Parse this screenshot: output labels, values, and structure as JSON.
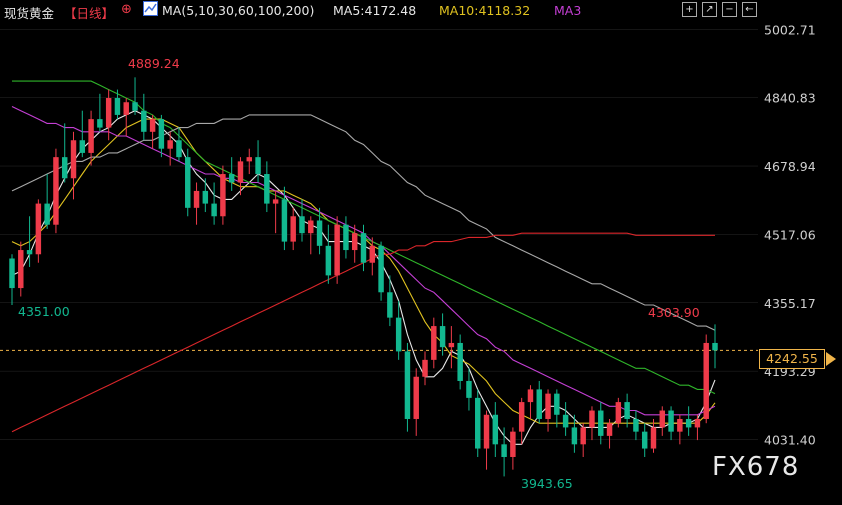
{
  "header": {
    "symbol": "现货黄金",
    "period": "【日线】",
    "ma_label": "MA(5,10,30,60,100,200)",
    "ma5_text": "MA5:4172.48",
    "ma10_text": "MA10:4118.32",
    "ma3_text": "MA3",
    "toolbar": [
      "+",
      "↗",
      "−",
      "←"
    ]
  },
  "colors": {
    "up": "#ef3b4a",
    "down": "#12b890",
    "ma5": "#e8e8e8",
    "ma10": "#e0c220",
    "ma30": "#c43fd4",
    "ma60": "#2fb52a",
    "ma100": "#a8a8a8",
    "ma200": "#d9262a",
    "current": "#f0b54a",
    "grid": "#2a2a2a"
  },
  "price_axis": {
    "ticks": [
      "5002.71",
      "4840.83",
      "4678.94",
      "4517.06",
      "4355.17",
      "4193.29",
      "4031.40"
    ],
    "current_price": "4242.55"
  },
  "annotations": {
    "high": "4889.24",
    "low_left": "4351.00",
    "low": "3943.65",
    "recent_high": "4303.90"
  },
  "watermark": "FX678",
  "chart_data": {
    "type": "candlestick",
    "title": "现货黄金 日线",
    "ylim": [
      3900,
      5020
    ],
    "y_ticks": [
      5002.71,
      4840.83,
      4678.94,
      4517.06,
      4355.17,
      4193.29,
      4031.4
    ],
    "current_price": 4242.55,
    "candles": [
      [
        4460,
        4470,
        4350,
        4390
      ],
      [
        4390,
        4500,
        4370,
        4480
      ],
      [
        4480,
        4560,
        4440,
        4470
      ],
      [
        4470,
        4600,
        4450,
        4590
      ],
      [
        4590,
        4660,
        4530,
        4540
      ],
      [
        4540,
        4720,
        4520,
        4700
      ],
      [
        4700,
        4780,
        4640,
        4650
      ],
      [
        4650,
        4760,
        4600,
        4740
      ],
      [
        4740,
        4810,
        4700,
        4710
      ],
      [
        4710,
        4810,
        4680,
        4790
      ],
      [
        4790,
        4850,
        4760,
        4770
      ],
      [
        4770,
        4860,
        4740,
        4840
      ],
      [
        4840,
        4860,
        4790,
        4800
      ],
      [
        4800,
        4840,
        4750,
        4830
      ],
      [
        4830,
        4889,
        4800,
        4810
      ],
      [
        4810,
        4850,
        4740,
        4760
      ],
      [
        4760,
        4800,
        4720,
        4790
      ],
      [
        4790,
        4800,
        4700,
        4720
      ],
      [
        4720,
        4760,
        4680,
        4740
      ],
      [
        4740,
        4770,
        4690,
        4700
      ],
      [
        4700,
        4720,
        4560,
        4580
      ],
      [
        4580,
        4640,
        4540,
        4620
      ],
      [
        4620,
        4650,
        4570,
        4590
      ],
      [
        4590,
        4640,
        4540,
        4560
      ],
      [
        4560,
        4680,
        4540,
        4660
      ],
      [
        4660,
        4700,
        4620,
        4640
      ],
      [
        4640,
        4700,
        4610,
        4690
      ],
      [
        4690,
        4720,
        4660,
        4700
      ],
      [
        4700,
        4740,
        4640,
        4660
      ],
      [
        4660,
        4690,
        4570,
        4590
      ],
      [
        4590,
        4620,
        4520,
        4600
      ],
      [
        4600,
        4630,
        4480,
        4500
      ],
      [
        4500,
        4580,
        4480,
        4560
      ],
      [
        4560,
        4600,
        4500,
        4520
      ],
      [
        4520,
        4560,
        4470,
        4550
      ],
      [
        4550,
        4580,
        4470,
        4490
      ],
      [
        4490,
        4540,
        4400,
        4420
      ],
      [
        4420,
        4560,
        4400,
        4540
      ],
      [
        4540,
        4560,
        4460,
        4480
      ],
      [
        4480,
        4540,
        4450,
        4520
      ],
      [
        4520,
        4540,
        4430,
        4450
      ],
      [
        4450,
        4510,
        4420,
        4490
      ],
      [
        4490,
        4500,
        4360,
        4380
      ],
      [
        4380,
        4420,
        4300,
        4320
      ],
      [
        4320,
        4360,
        4220,
        4240
      ],
      [
        4240,
        4260,
        4050,
        4080
      ],
      [
        4080,
        4200,
        4040,
        4180
      ],
      [
        4180,
        4240,
        4160,
        4220
      ],
      [
        4220,
        4320,
        4200,
        4300
      ],
      [
        4300,
        4330,
        4230,
        4250
      ],
      [
        4250,
        4300,
        4200,
        4260
      ],
      [
        4260,
        4280,
        4150,
        4170
      ],
      [
        4170,
        4200,
        4100,
        4130
      ],
      [
        4130,
        4150,
        3990,
        4010
      ],
      [
        4010,
        4100,
        3960,
        4090
      ],
      [
        4090,
        4120,
        3990,
        4020
      ],
      [
        4020,
        4060,
        3944,
        3990
      ],
      [
        3990,
        4060,
        3960,
        4050
      ],
      [
        4050,
        4130,
        4020,
        4120
      ],
      [
        4120,
        4160,
        4080,
        4150
      ],
      [
        4150,
        4170,
        4070,
        4080
      ],
      [
        4080,
        4150,
        4050,
        4140
      ],
      [
        4140,
        4150,
        4060,
        4090
      ],
      [
        4090,
        4120,
        4040,
        4060
      ],
      [
        4060,
        4090,
        4000,
        4020
      ],
      [
        4020,
        4070,
        3990,
        4060
      ],
      [
        4060,
        4110,
        4030,
        4100
      ],
      [
        4100,
        4120,
        4020,
        4040
      ],
      [
        4040,
        4080,
        4010,
        4070
      ],
      [
        4070,
        4130,
        4060,
        4120
      ],
      [
        4120,
        4140,
        4060,
        4080
      ],
      [
        4080,
        4100,
        4030,
        4050
      ],
      [
        4050,
        4070,
        3990,
        4010
      ],
      [
        4010,
        4080,
        4000,
        4060
      ],
      [
        4060,
        4110,
        4040,
        4100
      ],
      [
        4100,
        4110,
        4030,
        4050
      ],
      [
        4050,
        4090,
        4020,
        4080
      ],
      [
        4080,
        4110,
        4040,
        4060
      ],
      [
        4060,
        4090,
        4030,
        4080
      ],
      [
        4080,
        4280,
        4070,
        4260
      ],
      [
        4260,
        4304,
        4200,
        4242.55
      ]
    ],
    "series": [
      {
        "name": "MA5",
        "values": [
          4420,
          4430,
          4470,
          4520,
          4560,
          4610,
          4650,
          4690,
          4720,
          4740,
          4760,
          4770,
          4790,
          4800,
          4810,
          4800,
          4790,
          4770,
          4750,
          4730,
          4690,
          4660,
          4640,
          4610,
          4600,
          4600,
          4620,
          4640,
          4660,
          4650,
          4630,
          4610,
          4580,
          4550,
          4540,
          4530,
          4500,
          4500,
          4500,
          4500,
          4490,
          4480,
          4450,
          4410,
          4360,
          4280,
          4220,
          4180,
          4180,
          4200,
          4240,
          4230,
          4200,
          4150,
          4110,
          4070,
          4040,
          4020,
          4020,
          4060,
          4090,
          4110,
          4110,
          4100,
          4080,
          4060,
          4060,
          4060,
          4060,
          4080,
          4090,
          4080,
          4070,
          4060,
          4060,
          4070,
          4070,
          4070,
          4080,
          4120,
          4172.48
        ]
      },
      {
        "name": "MA10",
        "values": [
          4500,
          4490,
          4500,
          4520,
          4540,
          4570,
          4600,
          4630,
          4660,
          4690,
          4710,
          4730,
          4750,
          4770,
          4780,
          4790,
          4790,
          4790,
          4780,
          4770,
          4740,
          4710,
          4690,
          4670,
          4650,
          4640,
          4630,
          4630,
          4630,
          4620,
          4620,
          4620,
          4610,
          4600,
          4590,
          4570,
          4550,
          4540,
          4530,
          4520,
          4510,
          4490,
          4480,
          4460,
          4430,
          4390,
          4350,
          4310,
          4280,
          4260,
          4230,
          4220,
          4210,
          4190,
          4170,
          4140,
          4120,
          4100,
          4090,
          4080,
          4070,
          4070,
          4070,
          4070,
          4070,
          4070,
          4070,
          4070,
          4070,
          4070,
          4070,
          4070,
          4070,
          4070,
          4070,
          4070,
          4070,
          4070,
          4070,
          4090,
          4118.32
        ]
      },
      {
        "name": "MA30",
        "values": [
          4820,
          4810,
          4800,
          4790,
          4780,
          4780,
          4770,
          4770,
          4760,
          4760,
          4760,
          4760,
          4750,
          4750,
          4740,
          4730,
          4720,
          4710,
          4700,
          4690,
          4680,
          4670,
          4660,
          4660,
          4650,
          4650,
          4640,
          4640,
          4640,
          4630,
          4620,
          4610,
          4600,
          4590,
          4580,
          4570,
          4560,
          4550,
          4540,
          4530,
          4520,
          4500,
          4490,
          4470,
          4450,
          4430,
          4410,
          4390,
          4380,
          4360,
          4340,
          4320,
          4300,
          4280,
          4270,
          4250,
          4240,
          4220,
          4210,
          4200,
          4190,
          4180,
          4170,
          4160,
          4150,
          4140,
          4130,
          4120,
          4110,
          4110,
          4100,
          4100,
          4090,
          4090,
          4090,
          4090,
          4090,
          4090,
          4090,
          4100,
          4110
        ]
      },
      {
        "name": "MA60",
        "values": [
          4880,
          4880,
          4880,
          4880,
          4880,
          4880,
          4880,
          4880,
          4880,
          4880,
          4870,
          4860,
          4850,
          4840,
          4830,
          4810,
          4800,
          4780,
          4770,
          4750,
          4730,
          4710,
          4690,
          4680,
          4670,
          4660,
          4650,
          4640,
          4630,
          4620,
          4610,
          4600,
          4590,
          4580,
          4570,
          4560,
          4550,
          4540,
          4530,
          4520,
          4510,
          4500,
          4490,
          4480,
          4470,
          4460,
          4450,
          4440,
          4430,
          4420,
          4410,
          4400,
          4390,
          4380,
          4370,
          4360,
          4350,
          4340,
          4330,
          4320,
          4310,
          4300,
          4290,
          4280,
          4270,
          4260,
          4250,
          4240,
          4230,
          4220,
          4210,
          4200,
          4200,
          4190,
          4180,
          4170,
          4160,
          4160,
          4150,
          4150,
          4140
        ]
      },
      {
        "name": "MA100",
        "values": [
          4620,
          4630,
          4640,
          4650,
          4660,
          4670,
          4680,
          4690,
          4690,
          4700,
          4700,
          4710,
          4710,
          4720,
          4730,
          4740,
          4740,
          4750,
          4760,
          4770,
          4770,
          4780,
          4780,
          4780,
          4790,
          4790,
          4790,
          4800,
          4800,
          4800,
          4800,
          4800,
          4800,
          4800,
          4800,
          4790,
          4780,
          4770,
          4760,
          4740,
          4730,
          4710,
          4690,
          4680,
          4660,
          4640,
          4630,
          4610,
          4600,
          4590,
          4580,
          4570,
          4550,
          4540,
          4530,
          4510,
          4500,
          4490,
          4480,
          4470,
          4460,
          4450,
          4440,
          4430,
          4420,
          4410,
          4400,
          4400,
          4390,
          4380,
          4370,
          4360,
          4350,
          4350,
          4340,
          4330,
          4320,
          4310,
          4300,
          4300,
          4290
        ]
      },
      {
        "name": "MA200",
        "values": [
          4050,
          4060,
          4070,
          4080,
          4090,
          4100,
          4110,
          4120,
          4130,
          4140,
          4150,
          4160,
          4170,
          4180,
          4190,
          4200,
          4210,
          4220,
          4230,
          4240,
          4250,
          4260,
          4270,
          4280,
          4290,
          4300,
          4310,
          4320,
          4330,
          4340,
          4350,
          4360,
          4370,
          4380,
          4390,
          4400,
          4410,
          4420,
          4430,
          4440,
          4450,
          4460,
          4470,
          4470,
          4480,
          4480,
          4490,
          4490,
          4500,
          4500,
          4500,
          4505,
          4510,
          4510,
          4510,
          4515,
          4515,
          4515,
          4520,
          4520,
          4520,
          4520,
          4520,
          4520,
          4520,
          4520,
          4520,
          4520,
          4520,
          4520,
          4520,
          4515,
          4515,
          4515,
          4515,
          4515,
          4515,
          4515,
          4515,
          4515,
          4515
        ]
      }
    ]
  }
}
